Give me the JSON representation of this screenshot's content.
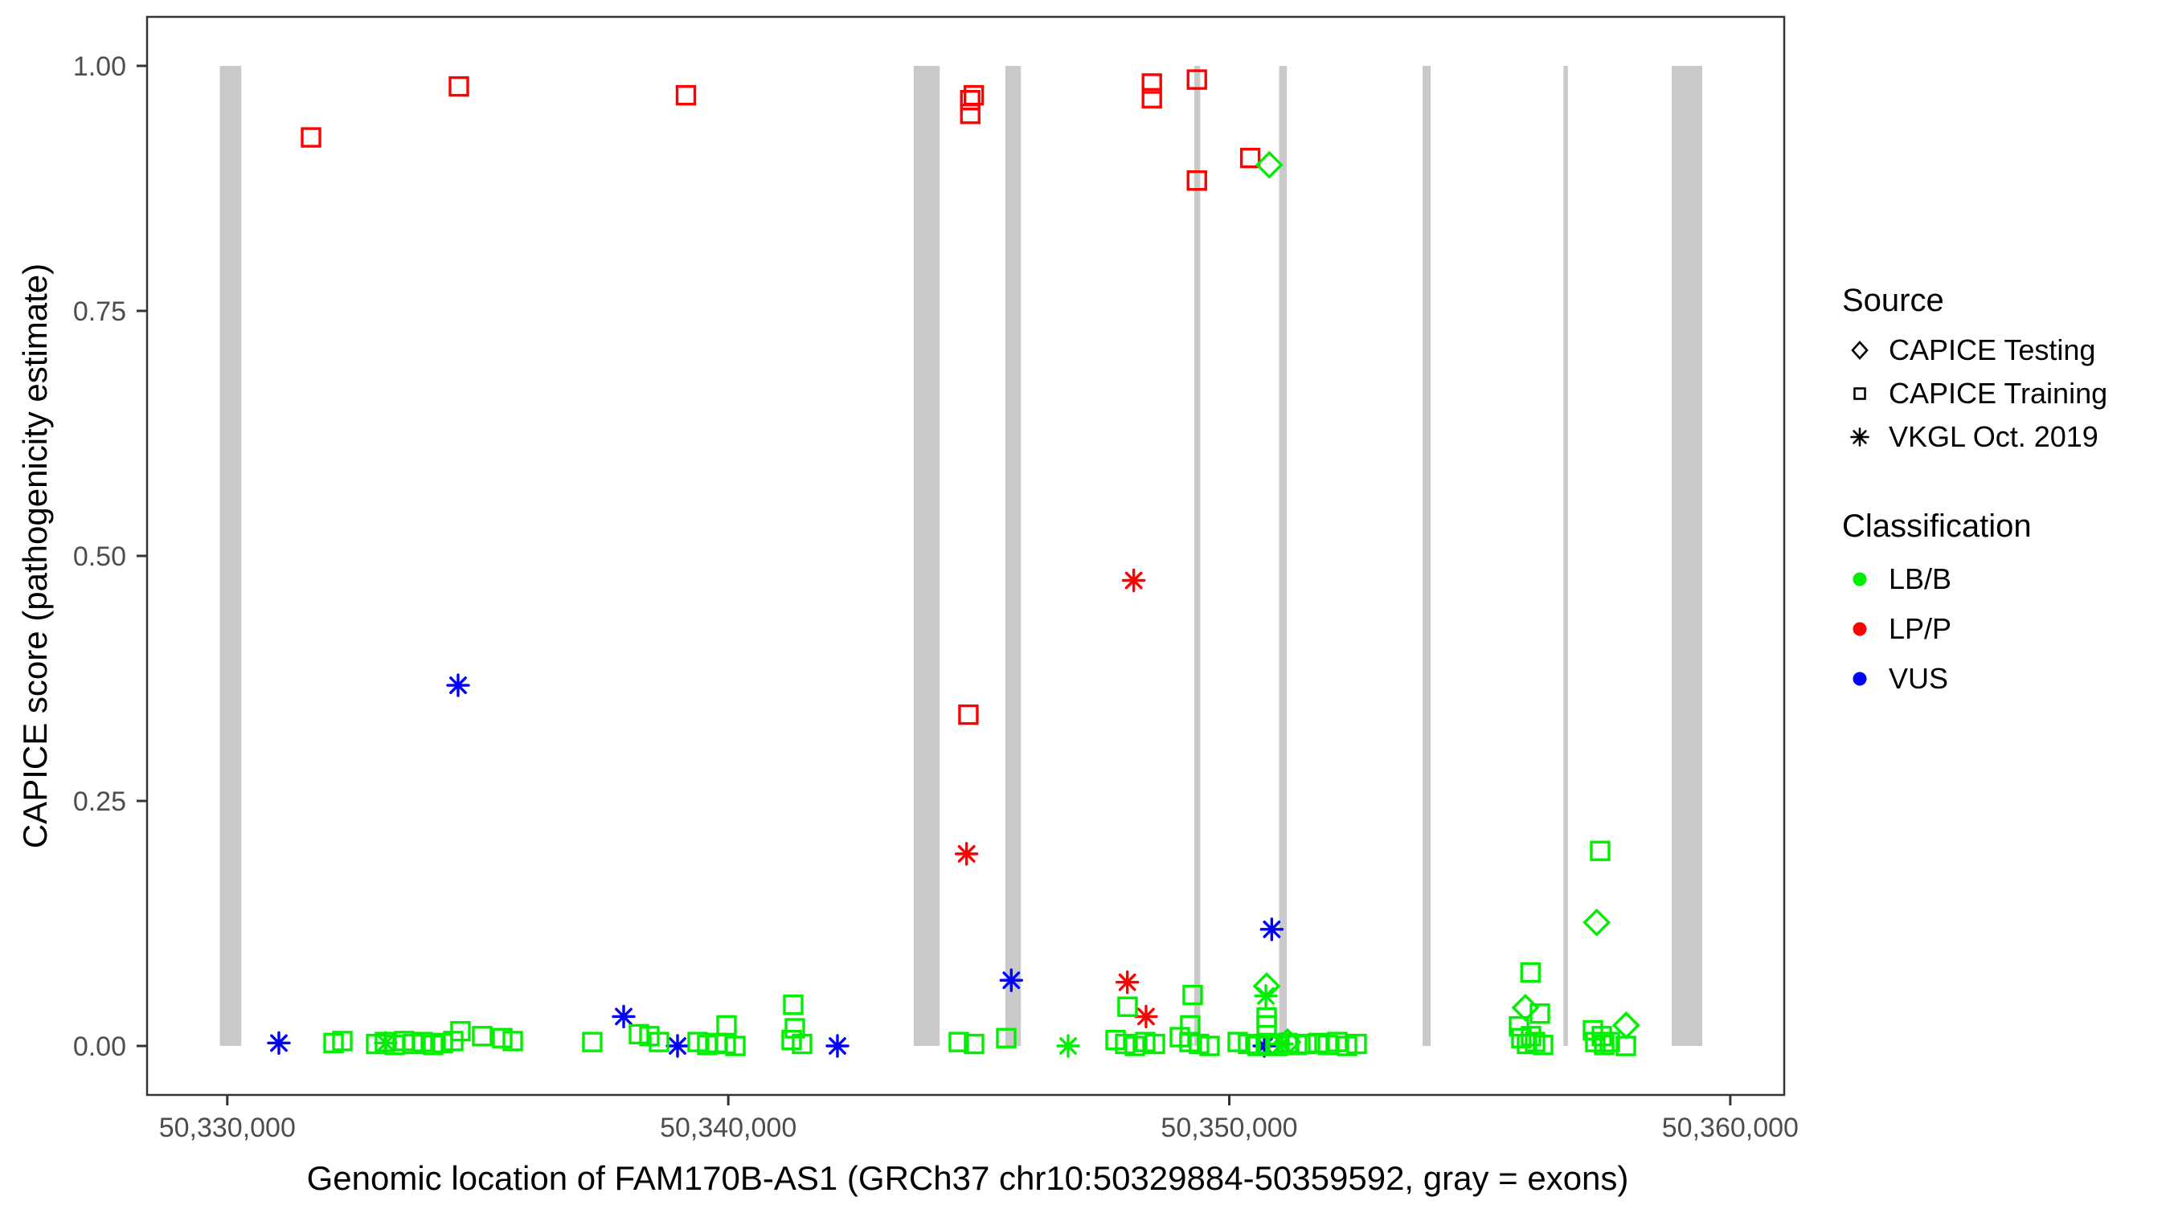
{
  "legend": {
    "source": {
      "title": "Source",
      "items": [
        {
          "label": "CAPICE Testing",
          "symbol": "diamond"
        },
        {
          "label": "CAPICE Training",
          "symbol": "square"
        },
        {
          "label": "VKGL Oct. 2019",
          "symbol": "asterisk"
        }
      ]
    },
    "classification": {
      "title": "Classification",
      "items": [
        {
          "label": "LB/B",
          "color": "#00ee00"
        },
        {
          "label": "LP/P",
          "color": "#ff0000"
        },
        {
          "label": "VUS",
          "color": "#0000ff"
        }
      ]
    }
  },
  "chart_data": {
    "type": "scatter",
    "title": "",
    "xlabel": "Genomic location of FAM170B-AS1 (GRCh37 chr10:50329884-50359592, gray = exons)",
    "ylabel": "CAPICE score (pathogenicity estimate)",
    "x_domain": [
      50328399,
      50361077
    ],
    "y_domain": [
      0,
      1
    ],
    "grid": false,
    "legend_position": "right",
    "x_ticks": [
      {
        "value": 50330000,
        "label": "50,330,000"
      },
      {
        "value": 50340000,
        "label": "50,340,000"
      },
      {
        "value": 50350000,
        "label": "50,350,000"
      },
      {
        "value": 50360000,
        "label": "50,360,000"
      }
    ],
    "y_ticks": [
      {
        "value": 0.0,
        "label": "0.00"
      },
      {
        "value": 0.25,
        "label": "0.25"
      },
      {
        "value": 0.5,
        "label": "0.50"
      },
      {
        "value": 0.75,
        "label": "0.75"
      },
      {
        "value": 1.0,
        "label": "1.00"
      }
    ],
    "exon_color": "#c9c9c9",
    "panel_border_color": "#333333",
    "tick_color": "#333333",
    "exons": [
      [
        50329850,
        50330280
      ],
      [
        50343700,
        50344220
      ],
      [
        50345530,
        50345840
      ],
      [
        50349300,
        50349420
      ],
      [
        50350995,
        50351150
      ],
      [
        50353860,
        50354020
      ],
      [
        50356670,
        50356760
      ],
      [
        50358830,
        50359440
      ]
    ],
    "colors": {
      "LB/B": "#00ee00",
      "LP/P": "#ff0000",
      "VUS": "#0000ff"
    },
    "shapes": {
      "CAPICE Testing": "diamond",
      "CAPICE Training": "square",
      "VKGL Oct. 2019": "asterisk"
    },
    "points_format": [
      "source",
      "classification",
      "position",
      "score"
    ],
    "points": [
      [
        "CAPICE Training",
        "LP/P",
        50331672,
        0.927
      ],
      [
        "CAPICE Training",
        "LP/P",
        50334623,
        0.979
      ],
      [
        "CAPICE Training",
        "LP/P",
        50339155,
        0.97
      ],
      [
        "CAPICE Training",
        "LP/P",
        50344830,
        0.965
      ],
      [
        "CAPICE Training",
        "LP/P",
        50344830,
        0.951
      ],
      [
        "CAPICE Training",
        "LP/P",
        50344901,
        0.97
      ],
      [
        "CAPICE Training",
        "LP/P",
        50348455,
        0.982
      ],
      [
        "CAPICE Training",
        "LP/P",
        50348455,
        0.967
      ],
      [
        "CAPICE Training",
        "LP/P",
        50349354,
        0.986
      ],
      [
        "CAPICE Training",
        "LP/P",
        50349354,
        0.883
      ],
      [
        "CAPICE Training",
        "LP/P",
        50350419,
        0.906
      ],
      [
        "CAPICE Training",
        "LP/P",
        50344793,
        0.338
      ],
      [
        "VKGL Oct. 2019",
        "LP/P",
        50344756,
        0.196
      ],
      [
        "VKGL Oct. 2019",
        "LP/P",
        50348093,
        0.475
      ],
      [
        "VKGL Oct. 2019",
        "LP/P",
        50347965,
        0.065
      ],
      [
        "VKGL Oct. 2019",
        "LP/P",
        50348339,
        0.03
      ],
      [
        "CAPICE Testing",
        "LB/B",
        50350799,
        0.899
      ],
      [
        "CAPICE Testing",
        "LB/B",
        50357334,
        0.126
      ],
      [
        "CAPICE Testing",
        "LB/B",
        50357921,
        0.021
      ],
      [
        "CAPICE Testing",
        "LB/B",
        50350746,
        0.061
      ],
      [
        "CAPICE Testing",
        "LB/B",
        50355911,
        0.039
      ],
      [
        "CAPICE Testing",
        "LB/B",
        50351163,
        0.004
      ],
      [
        "VKGL Oct. 2019",
        "VUS",
        50331030,
        0.003
      ],
      [
        "VKGL Oct. 2019",
        "VUS",
        50334607,
        0.368
      ],
      [
        "VKGL Oct. 2019",
        "VUS",
        50337912,
        0.03
      ],
      [
        "VKGL Oct. 2019",
        "VUS",
        50338987,
        0.0
      ],
      [
        "VKGL Oct. 2019",
        "VUS",
        50342179,
        0.0
      ],
      [
        "VKGL Oct. 2019",
        "VUS",
        50345649,
        0.067
      ],
      [
        "VKGL Oct. 2019",
        "VUS",
        50350848,
        0.119
      ],
      [
        "VKGL Oct. 2019",
        "VUS",
        50350699,
        0.0
      ],
      [
        "VKGL Oct. 2019",
        "LB/B",
        50346783,
        0.0
      ],
      [
        "VKGL Oct. 2019",
        "LB/B",
        50350730,
        0.051
      ],
      [
        "VKGL Oct. 2019",
        "LB/B",
        50333163,
        0.003
      ],
      [
        "VKGL Oct. 2019",
        "LB/B",
        50351050,
        0.002
      ],
      [
        "CAPICE Training",
        "LB/B",
        50332121,
        0.003
      ],
      [
        "CAPICE Training",
        "LB/B",
        50332297,
        0.005
      ],
      [
        "CAPICE Training",
        "LB/B",
        50332971,
        0.002
      ],
      [
        "CAPICE Training",
        "LB/B",
        50333147,
        0.004
      ],
      [
        "CAPICE Training",
        "LB/B",
        50333340,
        0.001
      ],
      [
        "CAPICE Training",
        "LB/B",
        50333532,
        0.005
      ],
      [
        "CAPICE Training",
        "LB/B",
        50333709,
        0.002
      ],
      [
        "CAPICE Training",
        "LB/B",
        50333901,
        0.004
      ],
      [
        "CAPICE Training",
        "LB/B",
        50334110,
        0.001
      ],
      [
        "CAPICE Training",
        "LB/B",
        50334302,
        0.003
      ],
      [
        "CAPICE Training",
        "LB/B",
        50334511,
        0.005
      ],
      [
        "CAPICE Training",
        "LB/B",
        50334655,
        0.015
      ],
      [
        "CAPICE Training",
        "LB/B",
        50335088,
        0.01
      ],
      [
        "CAPICE Training",
        "LB/B",
        50335490,
        0.008
      ],
      [
        "CAPICE Training",
        "LB/B",
        50335698,
        0.005
      ],
      [
        "CAPICE Training",
        "LB/B",
        50337286,
        0.004
      ],
      [
        "CAPICE Training",
        "LB/B",
        50338217,
        0.012
      ],
      [
        "CAPICE Training",
        "LB/B",
        50338425,
        0.01
      ],
      [
        "CAPICE Training",
        "LB/B",
        50338618,
        0.004
      ],
      [
        "CAPICE Training",
        "LB/B",
        50339388,
        0.004
      ],
      [
        "CAPICE Training",
        "LB/B",
        50339580,
        0.001
      ],
      [
        "CAPICE Training",
        "LB/B",
        50339773,
        0.003
      ],
      [
        "CAPICE Training",
        "LB/B",
        50339965,
        0.021
      ],
      [
        "CAPICE Training",
        "LB/B",
        50339949,
        0.002
      ],
      [
        "CAPICE Training",
        "LB/B",
        50340142,
        0.0
      ],
      [
        "CAPICE Training",
        "LB/B",
        50341265,
        0.006
      ],
      [
        "CAPICE Training",
        "LB/B",
        50341297,
        0.042
      ],
      [
        "CAPICE Training",
        "LB/B",
        50341329,
        0.018
      ],
      [
        "CAPICE Training",
        "LB/B",
        50341473,
        0.002
      ],
      [
        "CAPICE Training",
        "LB/B",
        50344601,
        0.004
      ],
      [
        "CAPICE Training",
        "LB/B",
        50344906,
        0.002
      ],
      [
        "CAPICE Training",
        "LB/B",
        50345548,
        0.008
      ],
      [
        "CAPICE Training",
        "LB/B",
        50347730,
        0.006
      ],
      [
        "CAPICE Training",
        "LB/B",
        50347922,
        0.002
      ],
      [
        "CAPICE Training",
        "LB/B",
        50347970,
        0.04
      ],
      [
        "CAPICE Training",
        "LB/B",
        50348115,
        0.0
      ],
      [
        "CAPICE Training",
        "LB/B",
        50348323,
        0.004
      ],
      [
        "CAPICE Training",
        "LB/B",
        50348516,
        0.002
      ],
      [
        "CAPICE Training",
        "LB/B",
        50349013,
        0.009
      ],
      [
        "CAPICE Training",
        "LB/B",
        50349205,
        0.004
      ],
      [
        "CAPICE Training",
        "LB/B",
        50349221,
        0.021
      ],
      [
        "CAPICE Training",
        "LB/B",
        50349269,
        0.052
      ],
      [
        "CAPICE Training",
        "LB/B",
        50349398,
        0.002
      ],
      [
        "CAPICE Training",
        "LB/B",
        50349606,
        0.0
      ],
      [
        "CAPICE Training",
        "LB/B",
        50350168,
        0.004
      ],
      [
        "CAPICE Training",
        "LB/B",
        50350376,
        0.002
      ],
      [
        "CAPICE Training",
        "LB/B",
        50350569,
        0.0
      ],
      [
        "CAPICE Training",
        "LB/B",
        50350746,
        0.029
      ],
      [
        "CAPICE Training",
        "LB/B",
        50350746,
        0.021
      ],
      [
        "CAPICE Training",
        "LB/B",
        50350778,
        0.002
      ],
      [
        "CAPICE Training",
        "LB/B",
        50350970,
        0.0
      ],
      [
        "CAPICE Training",
        "LB/B",
        50351163,
        0.003
      ],
      [
        "CAPICE Training",
        "LB/B",
        50351355,
        0.001
      ],
      [
        "CAPICE Training",
        "LB/B",
        50351548,
        0.002
      ],
      [
        "CAPICE Training",
        "LB/B",
        50351772,
        0.003
      ],
      [
        "CAPICE Training",
        "LB/B",
        50351965,
        0.001
      ],
      [
        "CAPICE Training",
        "LB/B",
        50352157,
        0.004
      ],
      [
        "CAPICE Training",
        "LB/B",
        50352350,
        0.0
      ],
      [
        "CAPICE Training",
        "LB/B",
        50352542,
        0.002
      ],
      [
        "CAPICE Training",
        "LB/B",
        50355783,
        0.02
      ],
      [
        "CAPICE Training",
        "LB/B",
        50355943,
        0.002
      ],
      [
        "CAPICE Training",
        "LB/B",
        50356012,
        0.075
      ],
      [
        "CAPICE Training",
        "LB/B",
        50356104,
        0.004
      ],
      [
        "CAPICE Training",
        "LB/B",
        50356200,
        0.033
      ],
      [
        "CAPICE Training",
        "LB/B",
        50356264,
        0.001
      ],
      [
        "CAPICE Training",
        "LB/B",
        50355831,
        0.008
      ],
      [
        "CAPICE Training",
        "LB/B",
        50356024,
        0.01
      ],
      [
        "CAPICE Training",
        "LB/B",
        50357259,
        0.016
      ],
      [
        "CAPICE Training",
        "LB/B",
        50357436,
        0.01
      ],
      [
        "CAPICE Training",
        "LB/B",
        50357596,
        0.004
      ],
      [
        "CAPICE Training",
        "LB/B",
        50357307,
        0.004
      ],
      [
        "CAPICE Training",
        "LB/B",
        50357484,
        0.001
      ],
      [
        "CAPICE Training",
        "LB/B",
        50357917,
        0.0
      ],
      [
        "CAPICE Training",
        "LB/B",
        50357403,
        0.199
      ]
    ]
  }
}
